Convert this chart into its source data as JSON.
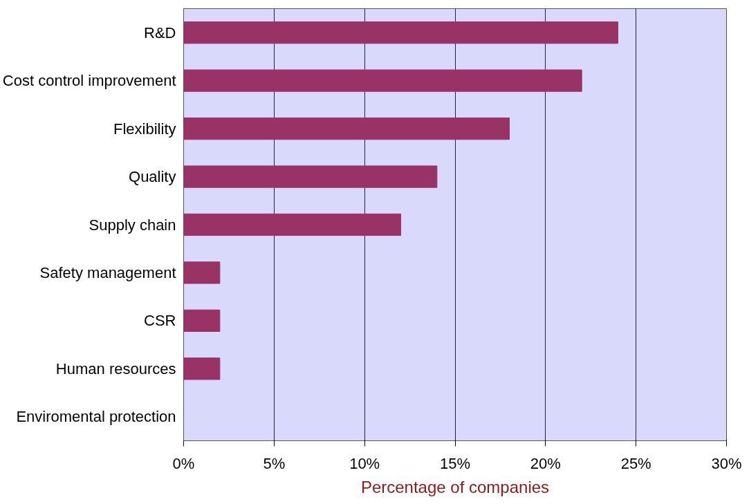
{
  "chart_data": {
    "type": "bar",
    "orientation": "horizontal",
    "categories": [
      "R&D",
      "Cost control improvement",
      "Flexibility",
      "Quality",
      "Supply chain",
      "Safety management",
      "CSR",
      "Human resources",
      "Enviromental protection"
    ],
    "values": [
      24,
      22,
      18,
      14,
      12,
      2,
      2,
      2,
      0
    ],
    "color": "#993366",
    "xlabel": "Percentage of companies",
    "xlim": [
      0,
      30
    ],
    "xticks": [
      {
        "value": 0,
        "label": "0%"
      },
      {
        "value": 5,
        "label": "5%"
      },
      {
        "value": 10,
        "label": "10%"
      },
      {
        "value": 15,
        "label": "15%"
      },
      {
        "value": 20,
        "label": "20%"
      },
      {
        "value": 25,
        "label": "25%"
      },
      {
        "value": 30,
        "label": "30%"
      }
    ],
    "grid": "x"
  }
}
